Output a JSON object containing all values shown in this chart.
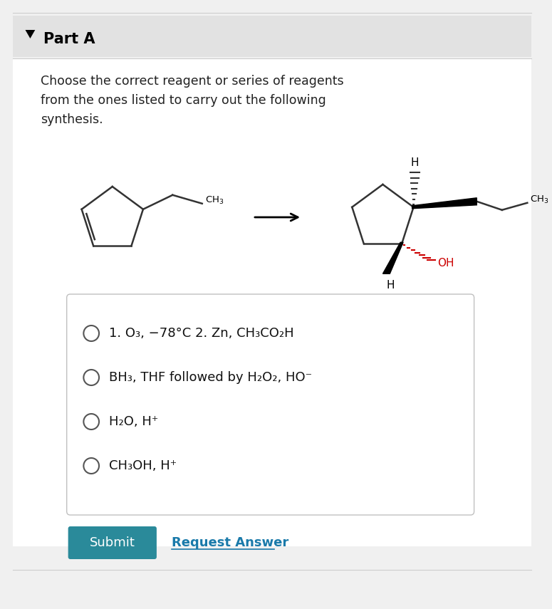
{
  "bg_color": "#f0f0f0",
  "white": "#ffffff",
  "header_bg": "#e2e2e2",
  "part_a_text": "Part A",
  "description": "Choose the correct reagent or series of reagents\nfrom the ones listed to carry out the following\nsynthesis.",
  "options": [
    "1. O₃, −78°C 2. Zn, CH₃CO₂H",
    "BH₃, THF followed by H₂O₂, HO⁻",
    "H₂O, H⁺",
    "CH₃OH, H⁺"
  ],
  "submit_bg": "#2a8a9a",
  "submit_text": "Submit",
  "request_text": "Request Answer",
  "title_color": "#000000",
  "desc_color": "#222222",
  "option_color": "#111111",
  "link_color": "#1a7aaa",
  "border_color": "#cccccc",
  "ring_color": "#333333",
  "oh_color": "#cc0000"
}
